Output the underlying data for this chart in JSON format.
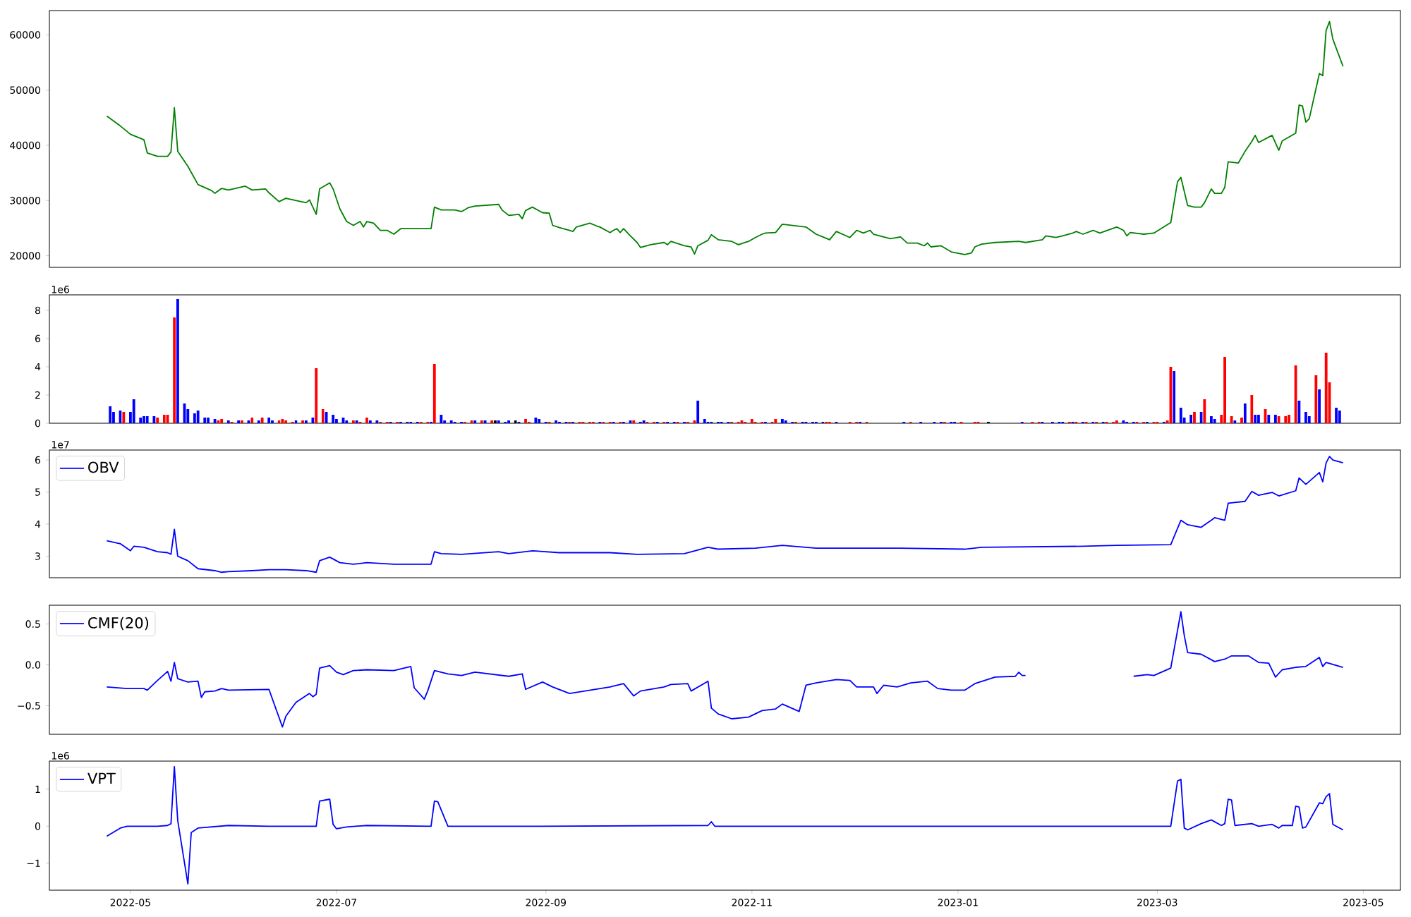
{
  "chart_data": [
    {
      "type": "line",
      "color": "#008000",
      "xlim": [
        "2022-04-07",
        "2023-05-12"
      ],
      "ylim": [
        17900,
        64400
      ],
      "yticks": [
        20000,
        30000,
        40000,
        50000,
        60000
      ],
      "tick_labels": "y",
      "x": [
        "2022-04-24",
        "2022-04-28",
        "2022-04-30",
        "2022-05-01",
        "2022-05-05",
        "2022-05-06",
        "2022-05-09",
        "2022-05-12",
        "2022-05-13",
        "2022-05-14",
        "2022-05-15",
        "2022-05-18",
        "2022-05-21",
        "2022-05-25",
        "2022-05-26",
        "2022-05-28",
        "2022-05-30",
        "2022-06-04",
        "2022-06-06",
        "2022-06-10",
        "2022-06-11",
        "2022-06-14",
        "2022-06-16",
        "2022-06-22",
        "2022-06-23",
        "2022-06-25",
        "2022-06-26",
        "2022-06-29",
        "2022-06-30",
        "2022-07-02",
        "2022-07-04",
        "2022-07-06",
        "2022-07-08",
        "2022-07-09",
        "2022-07-10",
        "2022-07-12",
        "2022-07-14",
        "2022-07-16",
        "2022-07-18",
        "2022-07-20",
        "2022-07-23",
        "2022-07-25",
        "2022-07-28",
        "2022-07-29",
        "2022-07-30",
        "2022-08-01",
        "2022-08-05",
        "2022-08-07",
        "2022-08-09",
        "2022-08-11",
        "2022-08-18",
        "2022-08-19",
        "2022-08-21",
        "2022-08-24",
        "2022-08-25",
        "2022-08-26",
        "2022-08-28",
        "2022-08-31",
        "2022-09-02",
        "2022-09-03",
        "2022-09-05",
        "2022-09-08",
        "2022-09-09",
        "2022-09-10",
        "2022-09-14",
        "2022-09-16",
        "2022-09-17",
        "2022-09-20",
        "2022-09-21",
        "2022-09-22",
        "2022-09-23",
        "2022-09-24",
        "2022-09-26",
        "2022-09-28",
        "2022-09-29",
        "2022-10-02",
        "2022-10-06",
        "2022-10-07",
        "2022-10-08",
        "2022-10-12",
        "2022-10-14",
        "2022-10-15",
        "2022-10-16",
        "2022-10-19",
        "2022-10-20",
        "2022-10-22",
        "2022-10-26",
        "2022-10-28",
        "2022-10-31",
        "2022-11-02",
        "2022-11-04",
        "2022-11-05",
        "2022-11-08",
        "2022-11-10",
        "2022-11-17",
        "2022-11-20",
        "2022-11-22",
        "2022-11-24",
        "2022-11-26",
        "2022-11-30",
        "2022-12-02",
        "2022-12-04",
        "2022-12-06",
        "2022-12-07",
        "2022-12-12",
        "2022-12-15",
        "2022-12-17",
        "2022-12-20",
        "2022-12-22",
        "2022-12-23",
        "2022-12-24",
        "2022-12-27",
        "2022-12-30",
        "2023-01-03",
        "2023-01-05",
        "2023-01-06",
        "2023-01-08",
        "2023-01-12",
        "2023-01-19",
        "2023-01-21",
        "2023-01-26",
        "2023-01-27",
        "2023-01-30",
        "2023-02-01",
        "2023-02-04",
        "2023-02-05",
        "2023-02-07",
        "2023-02-10",
        "2023-02-12",
        "2023-02-17",
        "2023-02-19",
        "2023-02-20",
        "2023-02-21",
        "2023-02-25",
        "2023-02-28",
        "2023-03-05",
        "2023-03-07",
        "2023-03-08",
        "2023-03-10",
        "2023-03-12",
        "2023-03-14",
        "2023-03-15",
        "2023-03-17",
        "2023-03-18",
        "2023-03-20",
        "2023-03-21",
        "2023-03-22",
        "2023-03-25",
        "2023-03-27",
        "2023-03-29",
        "2023-03-30",
        "2023-03-31",
        "2023-04-04",
        "2023-04-06",
        "2023-04-07",
        "2023-04-11",
        "2023-04-12",
        "2023-04-13",
        "2023-04-14",
        "2023-04-15",
        "2023-04-18",
        "2023-04-19",
        "2023-04-20",
        "2023-04-21",
        "2023-04-22",
        "2023-04-25"
      ],
      "values": [
        45300,
        43500,
        42500,
        42000,
        41000,
        38600,
        38000,
        38000,
        38800,
        46800,
        38900,
        36200,
        32900,
        31800,
        31300,
        32200,
        31900,
        32600,
        31900,
        32100,
        31400,
        29800,
        30400,
        29600,
        30100,
        27500,
        32100,
        33200,
        32100,
        28500,
        26200,
        25500,
        26200,
        25200,
        26200,
        25900,
        24600,
        24600,
        23900,
        24900,
        24900,
        24900,
        24900,
        24900,
        28800,
        28300,
        28300,
        28000,
        28700,
        29000,
        29300,
        28300,
        27300,
        27500,
        26700,
        28200,
        28800,
        27800,
        27700,
        25500,
        25100,
        24600,
        24400,
        25200,
        25900,
        25400,
        25200,
        24200,
        24600,
        24900,
        24200,
        24900,
        23600,
        22400,
        21500,
        22000,
        22400,
        22000,
        22600,
        21800,
        21600,
        20300,
        21800,
        22800,
        23800,
        22900,
        22600,
        22000,
        22600,
        23300,
        23900,
        24100,
        24200,
        25700,
        25200,
        23900,
        23400,
        22900,
        24400,
        23300,
        24600,
        24100,
        24600,
        23900,
        23100,
        23400,
        22300,
        22300,
        21800,
        22300,
        21600,
        21800,
        20700,
        20200,
        20500,
        21600,
        22100,
        22400,
        22600,
        22400,
        22900,
        23600,
        23300,
        23600,
        24100,
        24400,
        23900,
        24600,
        24100,
        25200,
        24600,
        23600,
        24200,
        23900,
        24100,
        26000,
        33400,
        34200,
        29100,
        28800,
        28800,
        29600,
        32100,
        31300,
        31300,
        32400,
        37000,
        36800,
        38900,
        40700,
        41800,
        40500,
        41800,
        39100,
        40800,
        42200,
        47300,
        47100,
        44200,
        44800,
        53000,
        52600,
        60800,
        62400,
        59200,
        54300
      ]
    },
    {
      "type": "bar",
      "xlim": [
        "2022-04-07",
        "2023-05-12"
      ],
      "ylim": [
        0,
        9.1
      ],
      "yticks": [
        0,
        2,
        4,
        6,
        8
      ],
      "tick_labels": "y",
      "annotations": [
        "1e6"
      ],
      "x": [
        "2022-04-25",
        "2022-04-26",
        "2022-04-28",
        "2022-04-29",
        "2022-05-01",
        "2022-05-02",
        "2022-05-04",
        "2022-05-05",
        "2022-05-06",
        "2022-05-08",
        "2022-05-09",
        "2022-05-11",
        "2022-05-12",
        "2022-05-14",
        "2022-05-15",
        "2022-05-17",
        "2022-05-18",
        "2022-05-20",
        "2022-05-21",
        "2022-05-23",
        "2022-05-24",
        "2022-05-26",
        "2022-05-27",
        "2022-05-28",
        "2022-05-30",
        "2022-05-31",
        "2022-06-02",
        "2022-06-03",
        "2022-06-05",
        "2022-06-06",
        "2022-06-08",
        "2022-06-09",
        "2022-06-11",
        "2022-06-12",
        "2022-06-14",
        "2022-06-15",
        "2022-06-16",
        "2022-06-18",
        "2022-06-19",
        "2022-06-21",
        "2022-06-22",
        "2022-06-24",
        "2022-06-25",
        "2022-06-27",
        "2022-06-28",
        "2022-06-30",
        "2022-07-01",
        "2022-07-03",
        "2022-07-04",
        "2022-07-06",
        "2022-07-07",
        "2022-07-08",
        "2022-07-10",
        "2022-07-11",
        "2022-07-13",
        "2022-07-14",
        "2022-07-16",
        "2022-07-17",
        "2022-07-19",
        "2022-07-20",
        "2022-07-22",
        "2022-07-23",
        "2022-07-25",
        "2022-07-26",
        "2022-07-28",
        "2022-07-29",
        "2022-07-30",
        "2022-08-01",
        "2022-08-02",
        "2022-08-04",
        "2022-08-05",
        "2022-08-07",
        "2022-08-08",
        "2022-08-10",
        "2022-08-11",
        "2022-08-13",
        "2022-08-14",
        "2022-08-16",
        "2022-08-17",
        "2022-08-18",
        "2022-08-20",
        "2022-08-21",
        "2022-08-23",
        "2022-08-24",
        "2022-08-26",
        "2022-08-27",
        "2022-08-29",
        "2022-08-30",
        "2022-09-01",
        "2022-09-02",
        "2022-09-04",
        "2022-09-05",
        "2022-09-07",
        "2022-09-08",
        "2022-09-09",
        "2022-09-11",
        "2022-09-12",
        "2022-09-14",
        "2022-09-15",
        "2022-09-17",
        "2022-09-18",
        "2022-09-20",
        "2022-09-21",
        "2022-09-23",
        "2022-09-24",
        "2022-09-26",
        "2022-09-27",
        "2022-09-29",
        "2022-09-30",
        "2022-10-01",
        "2022-10-03",
        "2022-10-04",
        "2022-10-06",
        "2022-10-07",
        "2022-10-09",
        "2022-10-10",
        "2022-10-12",
        "2022-10-13",
        "2022-10-15",
        "2022-10-16",
        "2022-10-18",
        "2022-10-19",
        "2022-10-20",
        "2022-10-22",
        "2022-10-23",
        "2022-10-25",
        "2022-10-26",
        "2022-10-28",
        "2022-10-29",
        "2022-10-30",
        "2022-11-01",
        "2022-11-02",
        "2022-11-04",
        "2022-11-05",
        "2022-11-07",
        "2022-11-08",
        "2022-11-10",
        "2022-11-11",
        "2022-11-13",
        "2022-11-14",
        "2022-11-16",
        "2022-11-17",
        "2022-11-19",
        "2022-11-20",
        "2022-11-22",
        "2022-11-23",
        "2022-11-24",
        "2022-11-26",
        "2022-11-30",
        "2022-12-02",
        "2022-12-03",
        "2022-12-05",
        "2022-12-16",
        "2022-12-18",
        "2022-12-21",
        "2022-12-25",
        "2022-12-27",
        "2022-12-28",
        "2022-12-30",
        "2022-12-31",
        "2023-01-02",
        "2023-01-06",
        "2023-01-07",
        "2023-01-10",
        "2023-01-20",
        "2023-01-23",
        "2023-01-25",
        "2023-01-26",
        "2023-01-29",
        "2023-01-31",
        "2023-02-01",
        "2023-02-03",
        "2023-02-04",
        "2023-02-05",
        "2023-02-07",
        "2023-02-08",
        "2023-02-10",
        "2023-02-11",
        "2023-02-13",
        "2023-02-14",
        "2023-02-16",
        "2023-02-17",
        "2023-02-19",
        "2023-02-20",
        "2023-02-22",
        "2023-02-23",
        "2023-02-25",
        "2023-02-26",
        "2023-02-28",
        "2023-03-01",
        "2023-03-03",
        "2023-03-04",
        "2023-03-05",
        "2023-03-06",
        "2023-03-08",
        "2023-03-09",
        "2023-03-11",
        "2023-03-12",
        "2023-03-14",
        "2023-03-15",
        "2023-03-17",
        "2023-03-18",
        "2023-03-20",
        "2023-03-21",
        "2023-03-23",
        "2023-03-24",
        "2023-03-26",
        "2023-03-27",
        "2023-03-29",
        "2023-03-30",
        "2023-03-31",
        "2023-04-02",
        "2023-04-03",
        "2023-04-05",
        "2023-04-06",
        "2023-04-08",
        "2023-04-09",
        "2023-04-11",
        "2023-04-12",
        "2023-04-14",
        "2023-04-15",
        "2023-04-17",
        "2023-04-18",
        "2023-04-20",
        "2023-04-21",
        "2023-04-23",
        "2023-04-24"
      ],
      "values": [
        1.2,
        0.8,
        0.9,
        0.8,
        0.8,
        1.7,
        0.4,
        0.5,
        0.5,
        0.5,
        0.4,
        0.6,
        0.6,
        7.5,
        8.8,
        1.4,
        1.0,
        0.7,
        0.9,
        0.4,
        0.4,
        0.3,
        0.2,
        0.3,
        0.2,
        0.1,
        0.2,
        0.2,
        0.2,
        0.4,
        0.2,
        0.4,
        0.4,
        0.2,
        0.2,
        0.3,
        0.2,
        0.1,
        0.2,
        0.2,
        0.2,
        0.4,
        3.9,
        1.0,
        0.8,
        0.6,
        0.3,
        0.4,
        0.2,
        0.2,
        0.2,
        0.1,
        0.4,
        0.2,
        0.2,
        0.1,
        0.1,
        0.1,
        0.1,
        0.1,
        0.1,
        0.1,
        0.1,
        0.1,
        0.1,
        0.1,
        4.2,
        0.6,
        0.2,
        0.2,
        0.1,
        0.1,
        0.1,
        0.2,
        0.2,
        0.2,
        0.2,
        0.2,
        0.2,
        0.2,
        0.1,
        0.2,
        0.2,
        0.1,
        0.3,
        0.1,
        0.4,
        0.3,
        0.1,
        0.1,
        0.2,
        0.1,
        0.1,
        0.1,
        0.1,
        0.1,
        0.1,
        0.1,
        0.1,
        0.1,
        0.1,
        0.1,
        0.1,
        0.1,
        0.1,
        0.2,
        0.2,
        0.1,
        0.2,
        0.1,
        0.1,
        0.1,
        0.1,
        0.1,
        0.1,
        0.1,
        0.1,
        0.1,
        0.2,
        1.6,
        0.3,
        0.1,
        0.1,
        0.1,
        0.1,
        0.1,
        0.1,
        0.1,
        0.2,
        0.1,
        0.3,
        0.1,
        0.1,
        0.1,
        0.1,
        0.3,
        0.3,
        0.2,
        0.1,
        0.1,
        0.1,
        0.1,
        0.1,
        0.1,
        0.1,
        0.1,
        0.1,
        0.1,
        0.1,
        0.1,
        0.1,
        0.1,
        0.1,
        0.1,
        0.1,
        0.1,
        0.1,
        0.1,
        0.1,
        0.1,
        0.1,
        0.1,
        0.1,
        0.1,
        0.1,
        0.1,
        0.1,
        0.1,
        0.1,
        0.1,
        0.1,
        0.1,
        0.1,
        0.1,
        0.1,
        0.1,
        0.1,
        0.1,
        0.1,
        0.1,
        0.1,
        0.2,
        0.2,
        0.1,
        0.1,
        0.1,
        0.1,
        0.1,
        0.1,
        0.1,
        0.1,
        0.2,
        4.0,
        3.7,
        1.1,
        0.4,
        0.6,
        0.8,
        0.8,
        1.7,
        0.5,
        0.3,
        0.6,
        4.7,
        0.5,
        0.2,
        0.4,
        1.4,
        2.0,
        0.6,
        0.6,
        1.0,
        0.6,
        0.6,
        0.5,
        0.5,
        0.6,
        4.1,
        1.6,
        0.8,
        0.5,
        3.4,
        2.4,
        5.0,
        2.9,
        1.1,
        0.9
      ],
      "colors": [
        "#0000ff",
        "#0000ff",
        "#0000ff",
        "#ff0000",
        "#0000ff",
        "#0000ff",
        "#0000ff",
        "#0000ff",
        "#0000ff",
        "#0000ff",
        "#ff0000",
        "#ff0000",
        "#ff0000",
        "#ff0000",
        "#0000ff",
        "#0000ff",
        "#0000ff",
        "#0000ff",
        "#0000ff",
        "#0000ff",
        "#0000ff",
        "#0000ff",
        "#ff0000",
        "#ff0000",
        "#0000ff",
        "#ff0000",
        "#0000ff",
        "#ff0000",
        "#0000ff",
        "#ff0000",
        "#0000ff",
        "#ff0000",
        "#0000ff",
        "#0000ff",
        "#ff0000",
        "#ff0000",
        "#ff0000",
        "#ff0000",
        "#0000ff",
        "#ff0000",
        "#0000ff",
        "#0000ff",
        "#ff0000",
        "#ff0000",
        "#0000ff",
        "#0000ff",
        "#0000ff",
        "#0000ff",
        "#0000ff",
        "#ff0000",
        "#0000ff",
        "#ff0000",
        "#ff0000",
        "#0000ff",
        "#0000ff",
        "#ff0000",
        "#ff0000",
        "#0000ff",
        "#ff0000",
        "#0000ff",
        "#0000ff",
        "#0000ff",
        "#0000ff",
        "#ff0000",
        "#ff0000",
        "#0000ff",
        "#ff0000",
        "#0000ff",
        "#0000ff",
        "#0000ff",
        "#0000ff",
        "#0000ff",
        "#ff0000",
        "#ff0000",
        "#0000ff",
        "#ff0000",
        "#0000ff",
        "#ff0000",
        "#000000",
        "#0000ff",
        "#0000ff",
        "#0000ff",
        "#000000",
        "#0000ff",
        "#ff0000",
        "#ff0000",
        "#0000ff",
        "#0000ff",
        "#0000ff",
        "#ff0000",
        "#0000ff",
        "#0000ff",
        "#0000ff",
        "#ff0000",
        "#0000ff",
        "#ff0000",
        "#ff0000",
        "#ff0000",
        "#ff0000",
        "#0000ff",
        "#ff0000",
        "#ff0000",
        "#0000ff",
        "#ff0000",
        "#0000ff",
        "#0000ff",
        "#ff0000",
        "#0000ff",
        "#0000ff",
        "#ff0000",
        "#ff0000",
        "#0000ff",
        "#ff0000",
        "#0000ff",
        "#0000ff",
        "#ff0000",
        "#0000ff",
        "#ff0000",
        "#ff0000",
        "#0000ff",
        "#0000ff",
        "#0000ff",
        "#0000ff",
        "#0000ff",
        "#0000ff",
        "#0000ff",
        "#ff0000",
        "#ff0000",
        "#ff0000",
        "#ff0000",
        "#ff0000",
        "#ff0000",
        "#ff0000",
        "#0000ff",
        "#ff0000",
        "#ff0000",
        "#0000ff",
        "#0000ff",
        "#0000ff",
        "#ff0000",
        "#0000ff",
        "#0000ff",
        "#0000ff",
        "#0000ff",
        "#0000ff",
        "#ff0000",
        "#ff0000",
        "#0000ff",
        "#ff0000",
        "#ff0000",
        "#0000ff",
        "#ff0000",
        "#0000ff",
        "#ff0000",
        "#0000ff",
        "#0000ff",
        "#0000ff",
        "#ff0000",
        "#0000ff",
        "#0000ff",
        "#ff0000",
        "#ff0000",
        "#ff0000",
        "#000000",
        "#0000ff",
        "#ff0000",
        "#ff0000",
        "#0000ff",
        "#0000ff",
        "#0000ff",
        "#0000ff",
        "#ff0000",
        "#0000ff",
        "#ff0000",
        "#0000ff",
        "#ff0000",
        "#0000ff",
        "#ff0000",
        "#0000ff",
        "#ff0000",
        "#ff0000",
        "#ff0000",
        "#0000ff",
        "#0000ff",
        "#0000ff",
        "#ff0000",
        "#ff0000",
        "#0000ff",
        "#ff0000",
        "#ff0000",
        "#0000ff",
        "#ff0000",
        "#ff0000",
        "#0000ff",
        "#0000ff",
        "#0000ff",
        "#0000ff",
        "#ff0000",
        "#0000ff",
        "#ff0000",
        "#0000ff",
        "#0000ff",
        "#ff0000",
        "#ff0000",
        "#ff0000",
        "#0000ff",
        "#ff0000",
        "#0000ff",
        "#ff0000",
        "#0000ff",
        "#0000ff",
        "#ff0000",
        "#0000ff",
        "#0000ff",
        "#ff0000",
        "#ff0000",
        "#ff0000",
        "#ff0000",
        "#0000ff",
        "#0000ff",
        "#0000ff",
        "#ff0000",
        "#0000ff",
        "#ff0000",
        "#ff0000",
        "#0000ff",
        "#0000ff"
      ]
    },
    {
      "type": "line",
      "xlim": [
        "2022-04-07",
        "2023-05-12"
      ],
      "ylim": [
        2.33,
        6.31
      ],
      "yticks": [
        3,
        4,
        5,
        6
      ],
      "tick_labels": "y",
      "legend": "top left",
      "annotations": [
        "1e7"
      ],
      "x": [
        "2022-04-24",
        "2022-04-28",
        "2022-05-01",
        "2022-05-02",
        "2022-05-05",
        "2022-05-09",
        "2022-05-12",
        "2022-05-13",
        "2022-05-14",
        "2022-05-15",
        "2022-05-18",
        "2022-05-21",
        "2022-05-26",
        "2022-05-28",
        "2022-05-30",
        "2022-06-06",
        "2022-06-11",
        "2022-06-16",
        "2022-06-22",
        "2022-06-25",
        "2022-06-26",
        "2022-06-29",
        "2022-07-02",
        "2022-07-06",
        "2022-07-10",
        "2022-07-18",
        "2022-07-29",
        "2022-07-30",
        "2022-08-01",
        "2022-08-07",
        "2022-08-18",
        "2022-08-21",
        "2022-08-28",
        "2022-09-05",
        "2022-09-20",
        "2022-09-28",
        "2022-10-12",
        "2022-10-19",
        "2022-10-22",
        "2022-11-02",
        "2022-11-10",
        "2022-11-20",
        "2022-12-15",
        "2023-01-03",
        "2023-01-08",
        "2023-02-07",
        "2023-02-17",
        "2023-03-05",
        "2023-03-08",
        "2023-03-10",
        "2023-03-14",
        "2023-03-17",
        "2023-03-18",
        "2023-03-21",
        "2023-03-22",
        "2023-03-27",
        "2023-03-29",
        "2023-03-31",
        "2023-04-04",
        "2023-04-06",
        "2023-04-11",
        "2023-04-12",
        "2023-04-14",
        "2023-04-18",
        "2023-04-19",
        "2023-04-20",
        "2023-04-21",
        "2023-04-22",
        "2023-04-25"
      ],
      "series": [
        {
          "name": "OBV",
          "color": "#0000ff",
          "values": [
            3.48,
            3.39,
            3.17,
            3.31,
            3.28,
            3.14,
            3.11,
            3.06,
            3.84,
            3.0,
            2.86,
            2.61,
            2.55,
            2.5,
            2.52,
            2.55,
            2.58,
            2.58,
            2.55,
            2.5,
            2.86,
            2.97,
            2.8,
            2.75,
            2.8,
            2.75,
            2.75,
            3.14,
            3.08,
            3.06,
            3.14,
            3.08,
            3.17,
            3.11,
            3.11,
            3.06,
            3.08,
            3.28,
            3.22,
            3.25,
            3.34,
            3.25,
            3.25,
            3.22,
            3.28,
            3.31,
            3.34,
            3.36,
            4.12,
            3.98,
            3.9,
            4.12,
            4.2,
            4.12,
            4.65,
            4.71,
            5.02,
            4.9,
            4.99,
            4.88,
            5.04,
            5.44,
            5.24,
            5.61,
            5.32,
            5.91,
            6.11,
            6.0,
            5.91
          ]
        }
      ]
    },
    {
      "type": "line",
      "xlim": [
        "2022-04-07",
        "2023-05-12"
      ],
      "ylim": [
        -0.85,
        0.73
      ],
      "yticks": [
        {
          "value": -0.5,
          "label": "−0.5"
        },
        {
          "value": 0,
          "label": "0.0"
        },
        0.5
      ],
      "tick_labels": "y",
      "legend": "top left",
      "x": [
        "2022-04-24",
        "2022-04-30",
        "2022-05-05",
        "2022-05-06",
        "2022-05-09",
        "2022-05-12",
        "2022-05-13",
        "2022-05-14",
        "2022-05-15",
        "2022-05-18",
        "2022-05-21",
        "2022-05-22",
        "2022-05-23",
        "2022-05-26",
        "2022-05-28",
        "2022-05-30",
        "2022-06-11",
        "2022-06-15",
        "2022-06-16",
        "2022-06-19",
        "2022-06-23",
        "2022-06-24",
        "2022-06-25",
        "2022-06-26",
        "2022-06-29",
        "2022-07-01",
        "2022-07-03",
        "2022-07-06",
        "2022-07-10",
        "2022-07-18",
        "2022-07-23",
        "2022-07-24",
        "2022-07-27",
        "2022-07-28",
        "2022-07-30",
        "2022-08-03",
        "2022-08-07",
        "2022-08-11",
        "2022-08-21",
        "2022-08-25",
        "2022-08-26",
        "2022-08-31",
        "2022-09-03",
        "2022-09-08",
        "2022-09-20",
        "2022-09-24",
        "2022-09-27",
        "2022-09-29",
        "2022-10-06",
        "2022-10-08",
        "2022-10-13",
        "2022-10-14",
        "2022-10-19",
        "2022-10-20",
        "2022-10-22",
        "2022-10-26",
        "2022-10-31",
        "2022-11-04",
        "2022-11-08",
        "2022-11-10",
        "2022-11-15",
        "2022-11-17",
        "2022-11-20",
        "2022-11-26",
        "2022-11-30",
        "2022-12-02",
        "2022-12-07",
        "2022-12-08",
        "2022-12-10",
        "2022-12-14",
        "2022-12-18",
        "2022-12-23",
        "2022-12-26",
        "2022-12-30",
        "2023-01-03",
        "2023-01-06",
        "2023-01-12",
        "2023-01-18",
        "2023-01-19",
        "2023-01-20",
        "2023-01-21",
        "2023-02-08",
        "2023-02-22",
        "2023-02-26",
        "2023-02-28",
        "2023-03-05",
        "2023-03-08",
        "2023-03-09",
        "2023-03-10",
        "2023-03-14",
        "2023-03-18",
        "2023-03-21",
        "2023-03-23",
        "2023-03-28",
        "2023-03-31",
        "2023-04-03",
        "2023-04-05",
        "2023-04-07",
        "2023-04-11",
        "2023-04-14",
        "2023-04-18",
        "2023-04-19",
        "2023-04-20",
        "2023-04-25"
      ],
      "series": [
        {
          "name": "CMF(20)",
          "color": "#0000ff",
          "values": [
            -0.27,
            -0.29,
            -0.29,
            -0.31,
            -0.19,
            -0.08,
            -0.2,
            0.03,
            -0.17,
            -0.21,
            -0.2,
            -0.4,
            -0.33,
            -0.32,
            -0.29,
            -0.31,
            -0.3,
            -0.76,
            -0.63,
            -0.46,
            -0.35,
            -0.39,
            -0.36,
            -0.04,
            -0.01,
            -0.09,
            -0.12,
            -0.07,
            -0.06,
            -0.07,
            -0.02,
            -0.28,
            -0.42,
            -0.32,
            -0.07,
            -0.11,
            -0.13,
            -0.09,
            -0.14,
            -0.11,
            -0.3,
            -0.21,
            -0.27,
            -0.35,
            -0.27,
            -0.23,
            -0.38,
            -0.32,
            -0.27,
            -0.24,
            -0.23,
            -0.32,
            -0.2,
            -0.53,
            -0.6,
            -0.66,
            -0.64,
            -0.56,
            -0.54,
            -0.48,
            -0.57,
            -0.25,
            -0.22,
            -0.18,
            -0.19,
            -0.27,
            -0.27,
            -0.35,
            -0.25,
            -0.27,
            -0.22,
            -0.2,
            -0.29,
            -0.31,
            -0.31,
            -0.23,
            -0.15,
            -0.14,
            -0.09,
            -0.13,
            -0.13,
            null,
            -0.14,
            -0.12,
            -0.13,
            -0.04,
            0.65,
            0.36,
            0.15,
            0.13,
            0.04,
            0.07,
            0.11,
            0.11,
            0.03,
            0.02,
            -0.15,
            -0.06,
            -0.03,
            -0.02,
            0.09,
            -0.02,
            0.03,
            -0.03
          ]
        }
      ]
    },
    {
      "type": "line",
      "xlim": [
        "2022-04-07",
        "2023-05-12"
      ],
      "ylim": [
        -1.73,
        1.76
      ],
      "yticks": [
        {
          "value": -1,
          "label": "−1"
        },
        0,
        1
      ],
      "xticks": [
        "2022-05",
        "2022-07",
        "2022-09",
        "2022-11",
        "2023-01",
        "2023-03",
        "2023-05"
      ],
      "legend": "top left",
      "annotations": [
        "1e6"
      ],
      "x": [
        "2022-04-24",
        "2022-04-28",
        "2022-04-30",
        "2022-05-05",
        "2022-05-09",
        "2022-05-12",
        "2022-05-13",
        "2022-05-14",
        "2022-05-15",
        "2022-05-18",
        "2022-05-19",
        "2022-05-21",
        "2022-05-30",
        "2022-06-11",
        "2022-06-25",
        "2022-06-26",
        "2022-06-29",
        "2022-06-30",
        "2022-07-01",
        "2022-07-04",
        "2022-07-10",
        "2022-07-29",
        "2022-07-30",
        "2022-07-31",
        "2022-08-03",
        "2022-08-30",
        "2022-10-19",
        "2022-10-20",
        "2022-10-21",
        "2022-12-15",
        "2023-03-05",
        "2023-03-07",
        "2023-03-08",
        "2023-03-09",
        "2023-03-10",
        "2023-03-14",
        "2023-03-17",
        "2023-03-20",
        "2023-03-21",
        "2023-03-22",
        "2023-03-23",
        "2023-03-24",
        "2023-03-29",
        "2023-03-31",
        "2023-04-04",
        "2023-04-06",
        "2023-04-07",
        "2023-04-10",
        "2023-04-11",
        "2023-04-12",
        "2023-04-13",
        "2023-04-14",
        "2023-04-18",
        "2023-04-19",
        "2023-04-20",
        "2023-04-21",
        "2023-04-22",
        "2023-04-25"
      ],
      "series": [
        {
          "name": "VPT",
          "color": "#0000ff",
          "values": [
            -0.27,
            -0.05,
            0,
            0,
            0,
            0.02,
            0.07,
            1.61,
            0.15,
            -1.56,
            -0.17,
            -0.05,
            0.02,
            0,
            0,
            0.68,
            0.73,
            0.05,
            -0.07,
            -0.02,
            0.02,
            0,
            0.68,
            0.66,
            0,
            0,
            0.02,
            0.12,
            0,
            0,
            0,
            1.22,
            1.27,
            -0.05,
            -0.1,
            0.07,
            0.17,
            0.02,
            0.07,
            0.73,
            0.71,
            0.02,
            0.07,
            0,
            0.05,
            -0.05,
            0.02,
            0.02,
            0.54,
            0.52,
            -0.05,
            -0.02,
            0.63,
            0.61,
            0.8,
            0.88,
            0.05,
            -0.1
          ]
        }
      ]
    }
  ]
}
